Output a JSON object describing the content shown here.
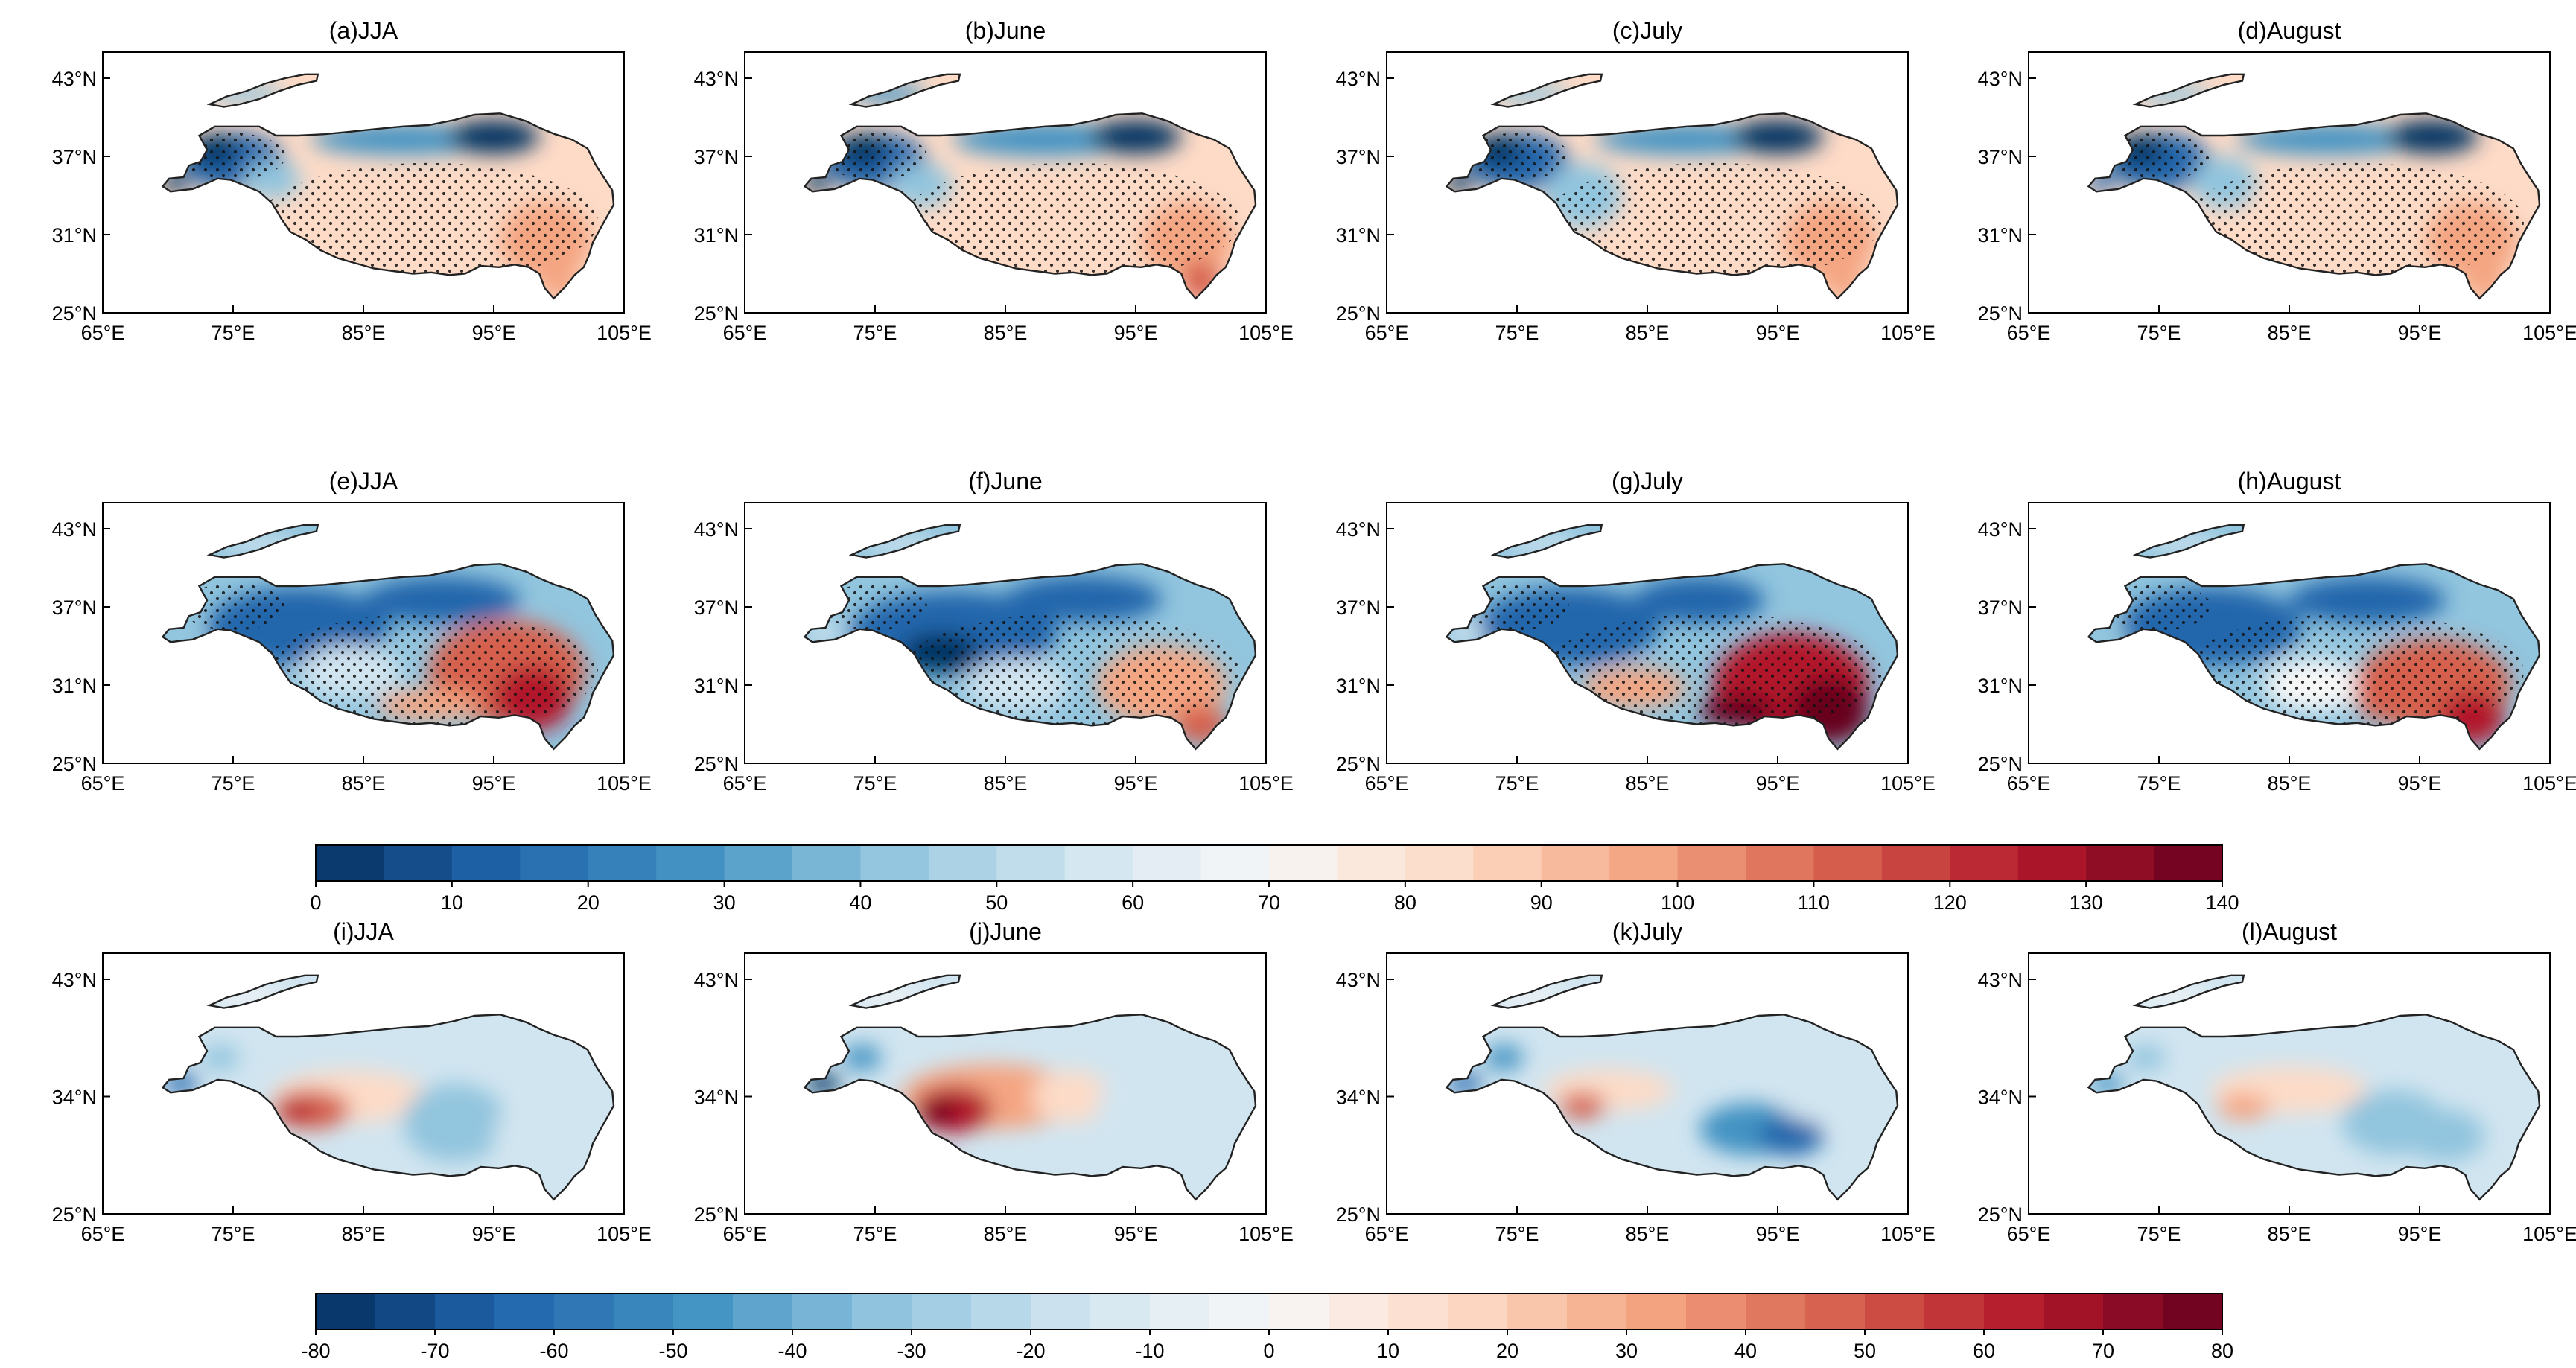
{
  "rows": [
    {
      "y_ticks": [
        "43°N",
        "37°N",
        "31°N",
        "25°N"
      ],
      "x_ticks": [
        "65°E",
        "75°E",
        "85°E",
        "95°E",
        "105°E"
      ],
      "stippled": true,
      "panels": [
        {
          "title": "(a)JJA",
          "pattern": "mean_jja"
        },
        {
          "title": "(b)June",
          "pattern": "mean_june"
        },
        {
          "title": "(c)July",
          "pattern": "mean_july"
        },
        {
          "title": "(d)August",
          "pattern": "mean_august"
        }
      ]
    },
    {
      "y_ticks": [
        "43°N",
        "37°N",
        "31°N",
        "25°N"
      ],
      "x_ticks": [
        "65°E",
        "75°E",
        "85°E",
        "95°E",
        "105°E"
      ],
      "stippled": true,
      "panels": [
        {
          "title": "(e)JJA",
          "pattern": "mean2_jja"
        },
        {
          "title": "(f)June",
          "pattern": "mean2_june"
        },
        {
          "title": "(g)July",
          "pattern": "mean2_july"
        },
        {
          "title": "(h)August",
          "pattern": "mean2_august"
        }
      ]
    },
    {
      "y_ticks": [
        "43°N",
        "34°N",
        "25°N"
      ],
      "x_ticks": [
        "65°E",
        "75°E",
        "85°E",
        "95°E",
        "105°E"
      ],
      "stippled": false,
      "panels": [
        {
          "title": "(i)JJA",
          "pattern": "diff_jja"
        },
        {
          "title": "(j)June",
          "pattern": "diff_june"
        },
        {
          "title": "(k)July",
          "pattern": "diff_july"
        },
        {
          "title": "(l)August",
          "pattern": "diff_august"
        }
      ]
    }
  ],
  "colorbars": [
    {
      "min": 0,
      "max": 140,
      "n_bins": 28,
      "tick_labels": [
        "0",
        "10",
        "20",
        "30",
        "40",
        "50",
        "60",
        "70",
        "80",
        "90",
        "100",
        "110",
        "120",
        "130",
        "140"
      ]
    },
    {
      "min": -80,
      "max": 80,
      "n_bins": 32,
      "tick_labels": [
        "-80",
        "-70",
        "-60",
        "-50",
        "-40",
        "-30",
        "-20",
        "-10",
        "0",
        "10",
        "20",
        "30",
        "40",
        "50",
        "60",
        "70",
        "80"
      ]
    }
  ],
  "palette": {
    "blue_dark": "#053061",
    "blue": "#2166ac",
    "blue_mid": "#4393c3",
    "blue_light": "#92c5de",
    "blue_pale": "#d1e5f0",
    "white": "#f7f7f7",
    "red_pale": "#fddbc7",
    "red_light": "#f4a582",
    "red_mid": "#d6604d",
    "red": "#b2182b",
    "red_dark": "#67001f"
  }
}
